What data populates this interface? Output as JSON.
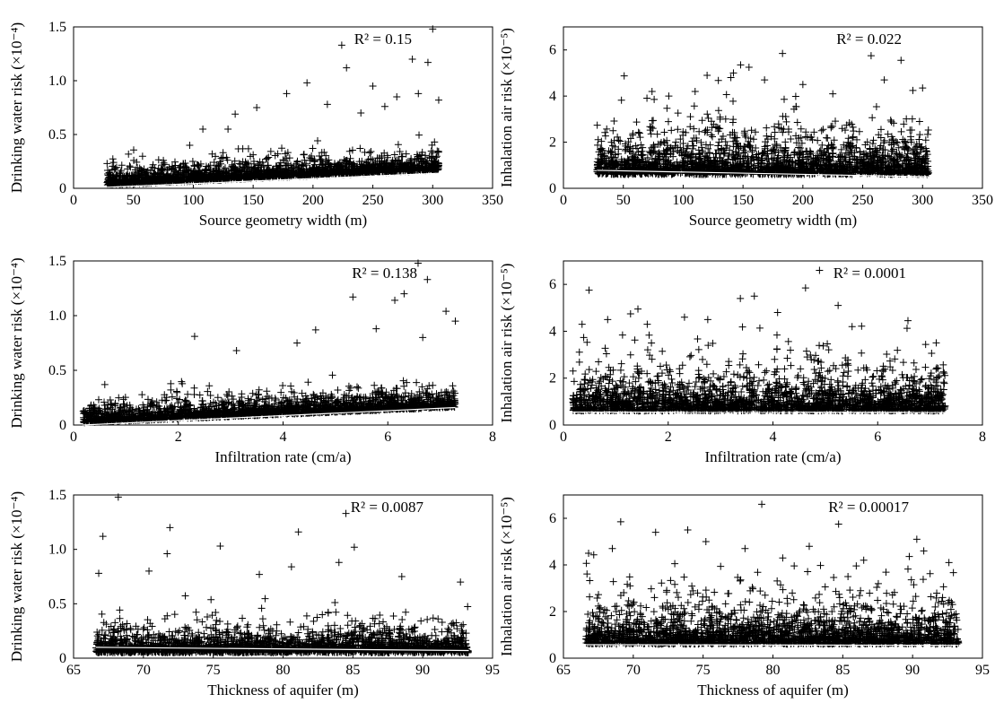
{
  "chart_data": [
    {
      "type": "scatter",
      "xlabel": "Source geometry width (m)",
      "ylabel": "Drinking water risk (×10⁻⁴)",
      "xlim": [
        0,
        350
      ],
      "ylim": [
        0,
        1.5
      ],
      "xticks": [
        "0",
        "50",
        "100",
        "150",
        "200",
        "250",
        "300",
        "350"
      ],
      "yticks": [
        "0",
        "0.5",
        "1.0",
        "1.5"
      ],
      "annotation": "R² = 0.15",
      "marker": "+",
      "trend": {
        "x": [
          28,
          305
        ],
        "y": [
          0.01,
          0.14
        ]
      },
      "series": [
        {
          "cloud": {
            "xmin": 28,
            "xmax": 305,
            "base": 0.03,
            "slope": 0.0005,
            "scale": 0.09
          }
        }
      ],
      "points": [
        [
          224,
          1.33
        ],
        [
          300,
          1.48
        ],
        [
          283,
          1.2
        ],
        [
          296,
          1.17
        ],
        [
          228,
          1.12
        ],
        [
          178,
          0.88
        ],
        [
          195,
          0.98
        ],
        [
          250,
          0.95
        ],
        [
          270,
          0.85
        ],
        [
          288,
          0.88
        ],
        [
          305,
          0.82
        ],
        [
          153,
          0.75
        ],
        [
          108,
          0.55
        ],
        [
          129,
          0.55
        ],
        [
          135,
          0.69
        ],
        [
          97,
          0.4
        ],
        [
          212,
          0.78
        ],
        [
          260,
          0.76
        ],
        [
          240,
          0.7
        ]
      ]
    },
    {
      "type": "scatter",
      "xlabel": "Source geometry width (m)",
      "ylabel": "Inhalation air risk (×10⁻⁵)",
      "xlim": [
        0,
        350
      ],
      "ylim": [
        0,
        7
      ],
      "xticks": [
        "0",
        "50",
        "100",
        "150",
        "200",
        "250",
        "300",
        "350"
      ],
      "yticks": [
        "0",
        "2",
        "4",
        "6"
      ],
      "annotation": "R² = 0.022",
      "marker": "+",
      "trend": {
        "x": [
          28,
          305
        ],
        "y": [
          0.78,
          0.5
        ]
      },
      "series": [
        {
          "cloud": {
            "xmin": 28,
            "xmax": 305,
            "base": 0.6,
            "slope": 0,
            "scale": 1.0
          }
        }
      ],
      "points": [
        [
          233,
          6.6
        ],
        [
          183,
          5.85
        ],
        [
          257,
          5.75
        ],
        [
          282,
          5.55
        ],
        [
          148,
          5.35
        ],
        [
          155,
          5.25
        ],
        [
          142,
          5.0
        ],
        [
          120,
          4.9
        ],
        [
          168,
          4.7
        ],
        [
          268,
          4.7
        ],
        [
          300,
          4.35
        ],
        [
          74,
          4.2
        ],
        [
          88,
          4.0
        ],
        [
          200,
          4.5
        ],
        [
          225,
          4.1
        ],
        [
          110,
          4.2
        ]
      ]
    },
    {
      "type": "scatter",
      "xlabel": "Infiltration rate (cm/a)",
      "ylabel": "Drinking water risk (×10⁻⁴)",
      "xlim": [
        0,
        9
      ],
      "ylim": [
        0,
        1.5
      ],
      "xticks": [
        "0",
        "2",
        "4",
        "6",
        "8"
      ],
      "yticks": [
        "0",
        "0.5",
        "1.0",
        "1.5"
      ],
      "annotation": "R² = 0.138",
      "marker": "+",
      "trend": {
        "x": [
          0.2,
          8.2
        ],
        "y": [
          0.0,
          0.16
        ]
      },
      "series": [
        {
          "cloud": {
            "xmin": 0.2,
            "xmax": 8.2,
            "base": 0.02,
            "slope": 0.018,
            "scale": 0.09
          }
        }
      ],
      "points": [
        [
          7.4,
          1.48
        ],
        [
          7.6,
          1.33
        ],
        [
          6.0,
          1.17
        ],
        [
          7.1,
          1.2
        ],
        [
          6.9,
          1.14
        ],
        [
          2.6,
          0.81
        ],
        [
          8.0,
          1.04
        ],
        [
          8.2,
          0.95
        ],
        [
          3.5,
          0.68
        ],
        [
          5.2,
          0.87
        ],
        [
          7.5,
          0.8
        ],
        [
          6.5,
          0.88
        ],
        [
          4.8,
          0.75
        ]
      ]
    },
    {
      "type": "scatter",
      "xlabel": "Infiltration rate (cm/a)",
      "ylabel": "Inhalation air risk (×10⁻⁵)",
      "xlim": [
        0,
        9
      ],
      "ylim": [
        0,
        7
      ],
      "xticks": [
        "0",
        "2",
        "4",
        "6",
        "8"
      ],
      "yticks": [
        "0",
        "2",
        "4",
        "6"
      ],
      "annotation": "R² = 0.0001",
      "marker": "+",
      "trend": {
        "x": [
          0.2,
          8.2
        ],
        "y": [
          0.55,
          0.54
        ]
      },
      "series": [
        {
          "cloud": {
            "xmin": 0.2,
            "xmax": 8.2,
            "base": 0.6,
            "slope": 0,
            "scale": 1.0
          }
        }
      ],
      "points": [
        [
          5.5,
          6.6
        ],
        [
          0.55,
          5.75
        ],
        [
          5.2,
          5.85
        ],
        [
          3.8,
          5.4
        ],
        [
          4.1,
          5.5
        ],
        [
          5.9,
          5.1
        ],
        [
          1.6,
          4.95
        ],
        [
          0.95,
          4.5
        ],
        [
          0.4,
          4.3
        ],
        [
          2.6,
          4.6
        ],
        [
          4.6,
          4.8
        ],
        [
          7.4,
          4.45
        ],
        [
          6.2,
          4.2
        ],
        [
          1.8,
          4.3
        ],
        [
          3.1,
          4.5
        ]
      ]
    },
    {
      "type": "scatter",
      "xlabel": "Thickness of aquifer (m)",
      "ylabel": "Drinking water risk (×10⁻⁴)",
      "xlim": [
        65,
        95
      ],
      "ylim": [
        0,
        1.5
      ],
      "xticks": [
        "65",
        "70",
        "75",
        "80",
        "85",
        "90",
        "95"
      ],
      "yticks": [
        "0",
        "0.5",
        "1.0",
        "1.5"
      ],
      "annotation": "R² = 0.0087",
      "marker": "+",
      "trend": {
        "x": [
          66.6,
          93.3
        ],
        "y": [
          0.1,
          0.07
        ]
      },
      "series": [
        {
          "cloud": {
            "xmin": 66.6,
            "xmax": 93.3,
            "base": 0.05,
            "slope": 0,
            "scale": 0.13
          }
        }
      ],
      "points": [
        [
          68.2,
          1.48
        ],
        [
          84.5,
          1.33
        ],
        [
          71.9,
          1.2
        ],
        [
          81.1,
          1.16
        ],
        [
          67.1,
          1.12
        ],
        [
          75.5,
          1.03
        ],
        [
          85.1,
          1.02
        ],
        [
          71.7,
          0.96
        ],
        [
          92.7,
          0.7
        ],
        [
          66.8,
          0.78
        ],
        [
          80.6,
          0.84
        ],
        [
          70.4,
          0.8
        ],
        [
          88.5,
          0.75
        ],
        [
          78.3,
          0.77
        ],
        [
          84.0,
          0.88
        ]
      ]
    },
    {
      "type": "scatter",
      "xlabel": "Thickness of aquifer (m)",
      "ylabel": "Inhalation air risk (×10⁻⁵)",
      "xlim": [
        65,
        95
      ],
      "ylim": [
        0,
        7
      ],
      "xticks": [
        "65",
        "70",
        "75",
        "80",
        "85",
        "90",
        "95"
      ],
      "yticks": [
        "0",
        "2",
        "4",
        "6"
      ],
      "annotation": "R² = 0.00017",
      "marker": "+",
      "trend": {
        "x": [
          66.6,
          93.3
        ],
        "y": [
          0.58,
          0.55
        ]
      },
      "series": [
        {
          "cloud": {
            "xmin": 66.6,
            "xmax": 93.3,
            "base": 0.6,
            "slope": 0,
            "scale": 1.0
          }
        }
      ],
      "points": [
        [
          79.2,
          6.6
        ],
        [
          69.1,
          5.85
        ],
        [
          84.7,
          5.75
        ],
        [
          71.6,
          5.4
        ],
        [
          73.9,
          5.5
        ],
        [
          90.3,
          5.1
        ],
        [
          75.2,
          5.0
        ],
        [
          82.6,
          4.8
        ],
        [
          66.8,
          4.5
        ],
        [
          90.8,
          4.6
        ],
        [
          78.0,
          4.7
        ],
        [
          86.5,
          4.2
        ],
        [
          92.6,
          4.1
        ],
        [
          68.5,
          4.7
        ],
        [
          80.7,
          4.3
        ]
      ]
    }
  ]
}
